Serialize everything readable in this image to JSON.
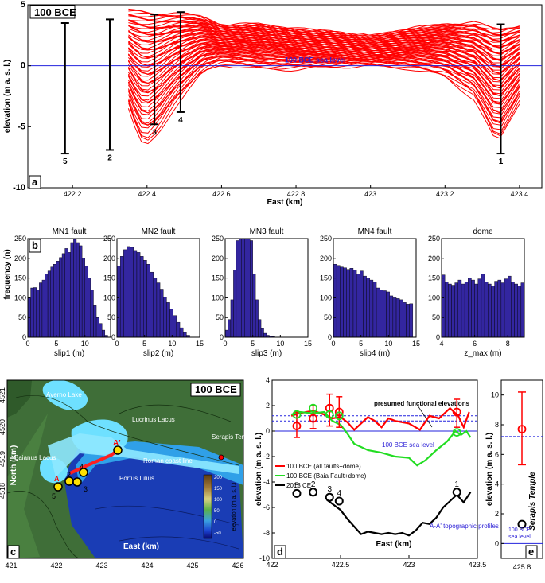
{
  "colors": {
    "red": "#ff0000",
    "green": "#22dd22",
    "blue": "#2b1fd6",
    "bar": "#3326a0",
    "black": "#000000",
    "seaLine": "#2222dd"
  },
  "chart_data": [
    {
      "id": "a",
      "type": "line",
      "badge": "100 BCE",
      "panel_label": "a",
      "xlabel": "East (km)",
      "ylabel": "elevation (m a. s. l.)",
      "xlim": [
        422.08,
        423.46
      ],
      "ylim": [
        -10,
        5
      ],
      "xticks": [
        422.2,
        422.4,
        422.6,
        422.8,
        423,
        423.2,
        423.4
      ],
      "xtick_labels": [
        "422.2",
        "422.4",
        "422.6",
        "422.8",
        "423",
        "423.2",
        "423.4"
      ],
      "yticks": [
        -10,
        -5,
        0,
        5
      ],
      "ytick_labels": [
        "-10",
        "-5",
        "0",
        "5"
      ],
      "sea_level_label": "100 BCE sea level",
      "profile_x": [
        422.35,
        422.38,
        422.4,
        422.43,
        422.47,
        422.5,
        422.55,
        422.6,
        422.7,
        422.8,
        422.9,
        423.0,
        423.1,
        423.2,
        423.28,
        423.34,
        423.4
      ],
      "profile_upper": [
        4.5,
        4.5,
        4.4,
        4.3,
        4.3,
        4.2,
        4.0,
        3.3,
        3.4,
        3.0,
        2.8,
        2.4,
        3.0,
        3.4,
        3.5,
        3.0,
        3.3
      ],
      "profile_lower": [
        -3.5,
        -6.3,
        -6.6,
        -5.6,
        -3.6,
        -2.4,
        -0.6,
        0.1,
        -0.3,
        -0.3,
        -0.1,
        0.0,
        -0.2,
        -0.9,
        -2.8,
        -6.5,
        -3.0
      ],
      "error_bars": [
        {
          "label": "5",
          "x": 422.18,
          "low": -7.2,
          "high": 3.5
        },
        {
          "label": "2",
          "x": 422.3,
          "low": -6.9,
          "high": 3.8
        },
        {
          "label": "3",
          "x": 422.42,
          "low": -4.8,
          "high": 4.2
        },
        {
          "label": "4",
          "x": 422.49,
          "low": -3.8,
          "high": 4.4
        },
        {
          "label": "1",
          "x": 423.35,
          "low": -7.2,
          "high": 3.4
        }
      ]
    },
    {
      "id": "b",
      "type": "bar",
      "panel_label": "b",
      "ylabel": "frequency (n)",
      "ylim": [
        0,
        250
      ],
      "yticks": [
        0,
        50,
        100,
        150,
        200,
        250
      ],
      "subplots": [
        {
          "title": "MN1 fault",
          "xlabel": "slip1 (m)",
          "xlim": [
            0,
            14.5
          ],
          "xticks": [
            0,
            5,
            10
          ],
          "bin_width": 0.5,
          "bin_start": 0,
          "values": [
            100,
            125,
            126,
            120,
            138,
            145,
            160,
            168,
            178,
            185,
            193,
            202,
            212,
            225,
            215,
            240,
            248,
            240,
            232,
            200,
            180,
            150,
            120,
            80,
            50,
            35,
            18,
            5
          ]
        },
        {
          "title": "MN2 fault",
          "xlabel": "slip2 (m)",
          "xlim": [
            0,
            15
          ],
          "xticks": [
            0,
            5,
            10,
            15
          ],
          "bin_width": 0.6,
          "bin_start": 0,
          "values": [
            180,
            205,
            222,
            230,
            228,
            220,
            215,
            205,
            195,
            185,
            165,
            150,
            138,
            122,
            102,
            88,
            72,
            55,
            38,
            24,
            12,
            5
          ]
        },
        {
          "title": "MN3 fault",
          "xlabel": "slip3 (m)",
          "xlim": [
            0,
            15
          ],
          "xticks": [
            0,
            5,
            10,
            15
          ],
          "bin_width": 0.5,
          "bin_start": 0,
          "values": [
            18,
            45,
            95,
            170,
            245,
            260,
            295,
            340,
            325,
            245,
            160,
            95,
            45,
            22,
            10,
            5,
            3,
            2
          ]
        },
        {
          "title": "MN4 fault",
          "xlabel": "slip4 (m)",
          "xlim": [
            0,
            15
          ],
          "xticks": [
            0,
            5,
            10,
            15
          ],
          "bin_width": 0.6,
          "bin_start": 0,
          "values": [
            185,
            182,
            178,
            176,
            172,
            175,
            170,
            160,
            168,
            155,
            150,
            145,
            140,
            125,
            120,
            118,
            115,
            105,
            100,
            98,
            95,
            88,
            84,
            85
          ]
        },
        {
          "title": "dome",
          "xlabel": "z_max (m)",
          "xlim": [
            4,
            9
          ],
          "xticks": [
            4,
            6,
            8
          ],
          "bin_width": 0.2,
          "bin_start": 4,
          "values": [
            158,
            140,
            135,
            132,
            138,
            145,
            135,
            140,
            150,
            145,
            135,
            148,
            160,
            140,
            135,
            130,
            142,
            145,
            138,
            148,
            155,
            140,
            135,
            130,
            138
          ]
        }
      ]
    },
    {
      "id": "d",
      "type": "line",
      "panel_label": "d",
      "xlabel": "East (km)",
      "ylabel": "elevation (m a. s. l.)",
      "xlim": [
        422,
        423.5
      ],
      "ylim": [
        -10,
        4
      ],
      "xticks": [
        422,
        422.5,
        423,
        423.5
      ],
      "xtick_labels": [
        "422",
        "422.5",
        "423",
        "423.5"
      ],
      "yticks": [
        -10,
        -8,
        -6,
        -4,
        -2,
        0,
        2,
        4
      ],
      "ytick_labels": [
        "-10",
        "-8",
        "-6",
        "-4",
        "-2",
        "0",
        "2",
        "4"
      ],
      "annotation_top": "presumed functional elevations",
      "sea_level_label": "100 BCE sea level",
      "profile_label": "A-A' topographic profiles",
      "legend": [
        "100 BCE (all faults+dome)",
        "100 BCE (Baia Fault+dome)",
        "2013 CE"
      ],
      "dashed_levels": [
        0.8,
        1.2
      ],
      "series": [
        {
          "name": "100 BCE (all faults+dome)",
          "color": "#ff0000",
          "x": [
            422.14,
            422.2,
            422.3,
            422.38,
            422.44,
            422.5,
            422.55,
            422.6,
            422.65,
            422.7,
            422.75,
            422.8,
            422.85,
            422.9,
            423.0,
            423.08,
            423.15,
            423.22,
            423.3,
            423.36,
            423.4,
            423.44
          ],
          "y": [
            1.2,
            1.4,
            1.6,
            1.3,
            1.0,
            1.1,
            0.7,
            0.1,
            0.6,
            1.1,
            0.8,
            0.3,
            1.0,
            0.8,
            0.6,
            0.1,
            1.2,
            1.0,
            1.8,
            1.2,
            0.3,
            1.5
          ]
        },
        {
          "name": "100 BCE (Baia Fault+dome)",
          "color": "#22dd22",
          "x": [
            422.14,
            422.2,
            422.3,
            422.38,
            422.44,
            422.5,
            422.55,
            422.6,
            422.7,
            422.8,
            422.9,
            423.0,
            423.06,
            423.12,
            423.2,
            423.28,
            423.34,
            423.38,
            423.42,
            423.45
          ],
          "y": [
            1.3,
            1.5,
            1.4,
            1.5,
            0.8,
            0.5,
            -0.2,
            -1.0,
            -1.5,
            -1.7,
            -2.0,
            -2.1,
            -2.7,
            -2.3,
            -1.5,
            -0.8,
            0.0,
            -0.3,
            0.0,
            -0.5
          ]
        },
        {
          "name": "2013 CE",
          "color": "#000000",
          "x": [
            422.4,
            422.45,
            422.5,
            422.55,
            422.6,
            422.65,
            422.7,
            422.75,
            422.8,
            422.85,
            422.9,
            422.95,
            423.0,
            423.05,
            423.1,
            423.15,
            423.2,
            423.25,
            423.3,
            423.35,
            423.4,
            423.45
          ],
          "y": [
            -5.4,
            -5.8,
            -6.2,
            -6.9,
            -7.5,
            -8.1,
            -7.9,
            -8.0,
            -8.1,
            -8.0,
            -8.1,
            -8.0,
            -8.2,
            -7.8,
            -7.2,
            -7.3,
            -6.8,
            -6.0,
            -5.5,
            -5.0,
            -5.6,
            -4.8
          ]
        }
      ],
      "red_markers": [
        {
          "x": 422.18,
          "y": 0.4,
          "low": -0.5,
          "high": 1.5
        },
        {
          "x": 422.3,
          "y": 1.0,
          "low": 0.2,
          "high": 2.0
        },
        {
          "x": 422.42,
          "y": 1.8,
          "low": 0.4,
          "high": 2.9
        },
        {
          "x": 422.49,
          "y": 1.5,
          "low": 0.3,
          "high": 2.7
        },
        {
          "x": 423.35,
          "y": 1.5,
          "low": 0.3,
          "high": 2.5
        }
      ],
      "green_markers": [
        {
          "x": 422.18,
          "y": 1.3
        },
        {
          "x": 422.3,
          "y": 1.8
        },
        {
          "x": 422.42,
          "y": 1.3
        },
        {
          "x": 422.49,
          "y": 1.2
        },
        {
          "x": 423.35,
          "y": -0.1
        }
      ],
      "black_markers": [
        {
          "label": "5",
          "x": 422.18,
          "y": -4.9
        },
        {
          "label": "2",
          "x": 422.3,
          "y": -4.8
        },
        {
          "label": "3",
          "x": 422.42,
          "y": -5.2
        },
        {
          "label": "4",
          "x": 422.49,
          "y": -5.5
        },
        {
          "label": "1",
          "x": 423.35,
          "y": -4.8
        }
      ]
    },
    {
      "id": "e",
      "type": "scatter",
      "panel_label": "e",
      "ylabel": "elevation (m a. s. l.)",
      "title_right": "Serapis Temple",
      "ylim": [
        -1,
        11
      ],
      "yticks": [
        0,
        2,
        4,
        6,
        8,
        10
      ],
      "ytick_labels": [
        "0",
        "2",
        "4",
        "6",
        "8",
        "10"
      ],
      "xtick_labels": [
        "425.8"
      ],
      "red_point": {
        "y": 7.7,
        "low": 5.3,
        "high": 10.2
      },
      "black_point": {
        "y": 1.3
      },
      "dashed_level": 7.2,
      "sea_level_label_1": "100 BCE",
      "sea_level_label_2": "sea level"
    }
  ],
  "map": {
    "panel_label": "c",
    "badge": "100 BCE",
    "north_label": "North (km)",
    "east_label": "East (km)",
    "xtick_labels": [
      "421",
      "422",
      "423",
      "424",
      "425",
      "426"
    ],
    "ytick_labels": [
      "4521",
      "4520",
      "4519",
      "4518"
    ],
    "colorbar_title": "elevation (m a. s. l.)",
    "colorbar_ticks": [
      "200",
      "150",
      "100",
      "50",
      "0",
      "-50"
    ],
    "places": [
      "Averno Lake",
      "Lucrinus Lacus",
      "Serapis Temple",
      "Baianus Lacus",
      "Roman coast line",
      "Portus Iulius",
      "A'",
      "A",
      "5",
      "2",
      "4",
      "3"
    ]
  }
}
